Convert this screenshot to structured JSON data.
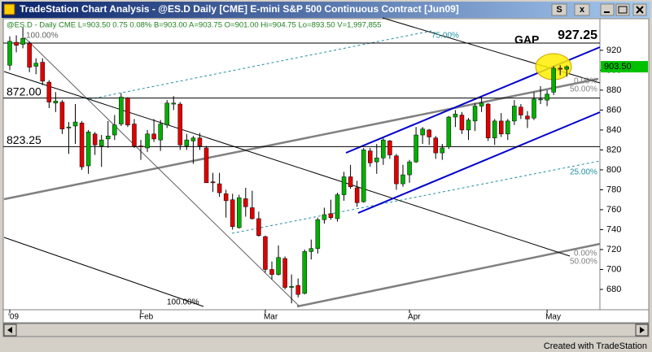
{
  "chart_data": {
    "type": "candlestick",
    "title": "TradeStation Chart Analysis - @ES.D  Daily  [CME] E-mini S&P 500 Continuous Contract [Jun09]",
    "subtitle": "@ES.D - Daily  CME  L=903.50  0.75  0.08%  B=903.00  A=903.75  O=901.00  Hi=904.75  Lo=893.50  V=1,997,855",
    "buttons": [
      "S",
      "x"
    ],
    "footer": "Created with TradeStation",
    "categories": [
      "'09",
      null,
      null,
      null,
      null,
      null,
      null,
      null,
      null,
      null,
      null,
      null,
      null,
      null,
      null,
      null,
      null,
      null,
      null,
      null,
      "Feb",
      null,
      null,
      null,
      null,
      null,
      null,
      null,
      null,
      null,
      null,
      null,
      null,
      null,
      null,
      null,
      null,
      null,
      null,
      "Mar",
      null,
      null,
      null,
      null,
      null,
      null,
      null,
      null,
      null,
      null,
      null,
      null,
      null,
      null,
      null,
      null,
      null,
      null,
      null,
      null,
      null,
      "Apr",
      null,
      null,
      null,
      null,
      null,
      null,
      null,
      null,
      null,
      null,
      null,
      null,
      null,
      null,
      null,
      null,
      null,
      null,
      null,
      null,
      "May",
      null,
      null,
      null
    ],
    "open": [
      905,
      928,
      926,
      927,
      904,
      908,
      888,
      867,
      868,
      842,
      844,
      847,
      804,
      836,
      824,
      831,
      835,
      846,
      872,
      846,
      824,
      822,
      836,
      830,
      845,
      866,
      866,
      824,
      829,
      832,
      822,
      788,
      786,
      776,
      770,
      742,
      771,
      762,
      751,
      733,
      700,
      695,
      711,
      682,
      684,
      676,
      718,
      721,
      750,
      756,
      751,
      775,
      793,
      782,
      768,
      819,
      808,
      812,
      829,
      814,
      786,
      795,
      808,
      835,
      840,
      832,
      817,
      823,
      853,
      855,
      840,
      849,
      864,
      866,
      832,
      849,
      836,
      849,
      863,
      854,
      852,
      871,
      870,
      878,
      902,
      901
    ],
    "high": [
      934,
      935,
      943,
      929,
      912,
      912,
      890,
      878,
      870,
      848,
      866,
      849,
      840,
      838,
      835,
      849,
      855,
      877,
      873,
      851,
      830,
      840,
      851,
      850,
      870,
      874,
      868,
      836,
      834,
      837,
      824,
      797,
      797,
      780,
      776,
      775,
      782,
      779,
      758,
      734,
      708,
      724,
      713,
      695,
      691,
      720,
      730,
      752,
      762,
      770,
      777,
      798,
      805,
      789,
      822,
      822,
      826,
      832,
      830,
      816,
      805,
      810,
      843,
      843,
      841,
      834,
      826,
      854,
      860,
      858,
      852,
      867,
      873,
      867,
      851,
      857,
      851,
      870,
      866,
      859,
      878,
      884,
      880,
      904,
      905,
      904.75
    ],
    "low": [
      900,
      918,
      922,
      898,
      896,
      885,
      862,
      858,
      836,
      816,
      826,
      800,
      796,
      815,
      803,
      822,
      830,
      844,
      843,
      822,
      810,
      818,
      828,
      819,
      842,
      860,
      820,
      820,
      806,
      820,
      787,
      778,
      773,
      752,
      740,
      741,
      753,
      750,
      733,
      697,
      690,
      694,
      680,
      666,
      672,
      675,
      710,
      716,
      746,
      750,
      748,
      769,
      781,
      763,
      767,
      803,
      796,
      805,
      811,
      780,
      783,
      787,
      807,
      826,
      825,
      811,
      810,
      821,
      843,
      836,
      830,
      839,
      858,
      829,
      825,
      833,
      830,
      845,
      851,
      842,
      850,
      866,
      864,
      875,
      895,
      893.5
    ],
    "close": [
      929,
      925,
      932,
      903,
      907,
      889,
      868,
      869,
      841,
      843,
      848,
      803,
      838,
      825,
      830,
      834,
      845,
      873,
      845,
      824,
      823,
      836,
      831,
      846,
      867,
      867,
      825,
      830,
      832,
      824,
      787,
      787,
      777,
      769,
      743,
      772,
      763,
      751,
      734,
      700,
      695,
      712,
      682,
      683,
      675,
      718,
      721,
      750,
      755,
      752,
      775,
      793,
      783,
      767,
      820,
      807,
      812,
      830,
      815,
      786,
      795,
      808,
      835,
      841,
      833,
      817,
      822,
      853,
      856,
      840,
      850,
      864,
      867,
      832,
      849,
      836,
      849,
      864,
      855,
      851,
      871,
      871,
      876,
      902,
      901,
      903.5
    ],
    "up_color": "#00b000",
    "down_color": "#e00000",
    "ylim": [
      659.6,
      951.7
    ],
    "yticks": [
      680,
      700,
      720,
      740,
      760,
      780,
      800,
      820,
      840,
      860,
      880,
      900,
      920
    ],
    "levels": [
      {
        "value": 927.25,
        "label": "927.25"
      },
      {
        "value": 872,
        "label": "872.00"
      },
      {
        "value": 823.25,
        "label": "823.25"
      }
    ],
    "last_price": {
      "value": 903.5,
      "label": "903.50"
    },
    "annotations": [
      "GAP",
      "75.00%",
      "100.00%",
      "100.00%",
      "0.00%",
      "50.00%",
      "25.00%",
      "0.00%",
      "50.00%"
    ]
  }
}
